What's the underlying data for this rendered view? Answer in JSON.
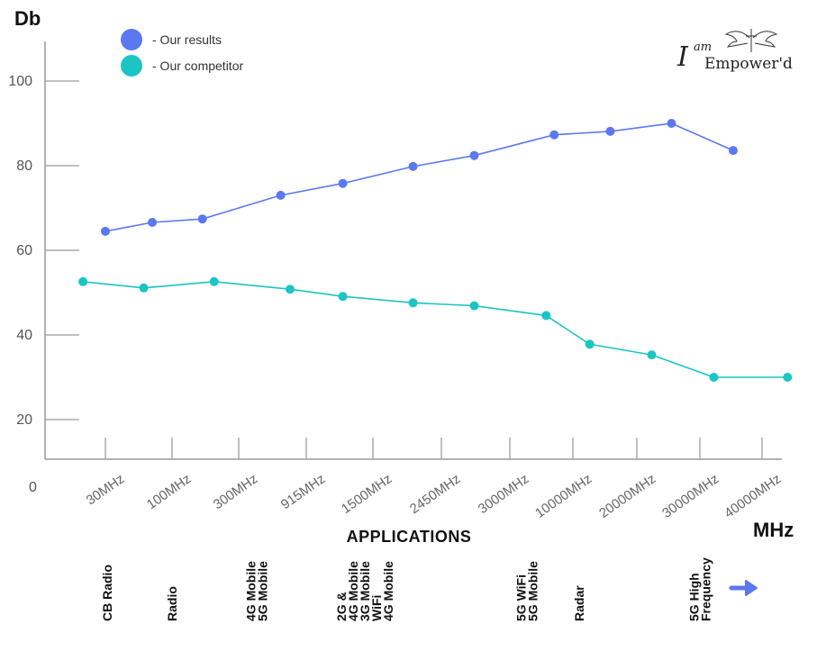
{
  "logo": {
    "line1": "I am",
    "line2": "Empower'd",
    "i": "I",
    "am": "am",
    "emp": "Empower'd"
  },
  "applications_title": "APPLICATIONS",
  "application_labels": [
    {
      "tick": "30MHz",
      "lines": [
        "CB Radio"
      ]
    },
    {
      "tick": "100MHz",
      "lines": [
        "Radio"
      ]
    },
    {
      "tick": "300MHz/915MHz",
      "lines": [
        "4G Mobile",
        "5G Mobile"
      ]
    },
    {
      "tick": "1500MHz/2450MHz",
      "lines": [
        "2G &",
        "4G Mobile",
        "3G Mobile",
        "WiFi",
        "4G Mobile"
      ]
    },
    {
      "tick": "3000MHz",
      "lines": [
        "5G WiFi",
        "5G Mobile"
      ]
    },
    {
      "tick": "10000MHz",
      "lines": [
        "Radar"
      ]
    },
    {
      "tick": "30000MHz",
      "lines": [
        "5G High",
        "Frequency"
      ]
    }
  ],
  "colors": {
    "our_results": "#5b78f0",
    "competitor": "#1cc4c4",
    "axis": "#999999",
    "arrow": "#5b78f0"
  },
  "chart_data": {
    "type": "line",
    "ylabel": "Db",
    "xlabel": "MHz",
    "ylim": [
      10,
      110
    ],
    "y_origin_label": "0",
    "yticks": [
      20,
      40,
      60,
      80,
      100
    ],
    "x_ticks": [
      "30MHz",
      "100MHz",
      "300MHz",
      "915MHz",
      "1500MHz",
      "2450MHz",
      "3000MHz",
      "10000MHz",
      "20000MHz",
      "30000MHz",
      "40000MHz"
    ],
    "grid": false,
    "legend": "top-left",
    "series": [
      {
        "name": "- Our results",
        "color": "#5b78f0",
        "x": [
          30,
          70,
          165,
          600,
          1200,
          2000,
          2700,
          7000,
          15000,
          25000,
          35000
        ],
        "values": [
          64.5,
          66.6,
          67.4,
          73,
          75.8,
          79.8,
          82.4,
          87.3,
          88.1,
          90,
          83.6
        ]
      },
      {
        "name": "- Our competitor",
        "color": "#1cc4c4",
        "x": [
          20,
          60,
          200,
          700,
          1200,
          2000,
          2700,
          6000,
          12000,
          22000,
          32000,
          45000
        ],
        "values": [
          52.6,
          51.1,
          52.6,
          50.8,
          49.1,
          47.6,
          46.9,
          44.6,
          37.8,
          35.3,
          30,
          30
        ]
      }
    ]
  }
}
